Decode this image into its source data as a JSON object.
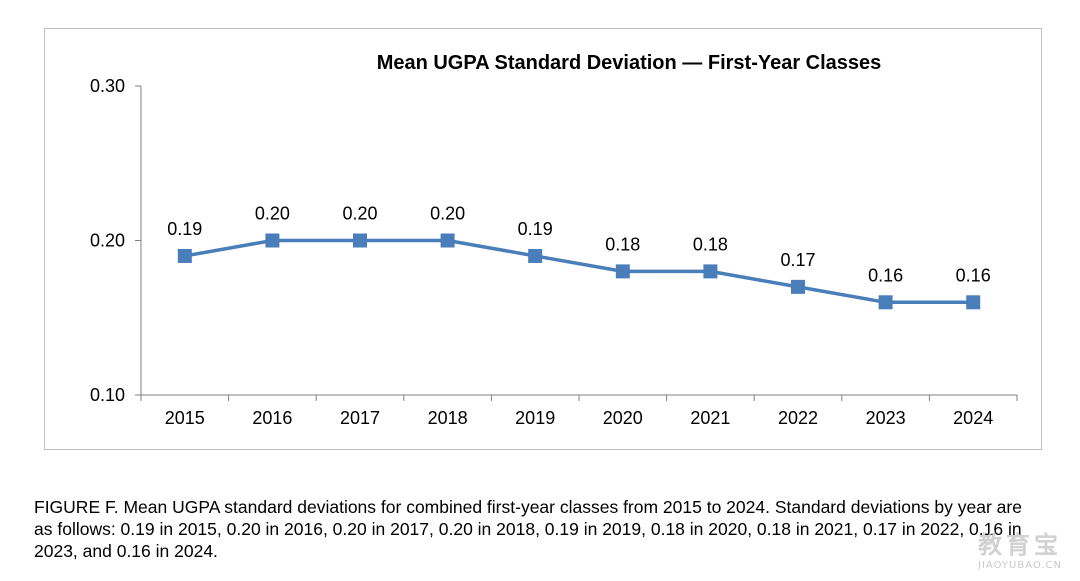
{
  "chart_data": {
    "type": "line",
    "title": "Mean UGPA Standard Deviation — First-Year Classes",
    "xlabel": "",
    "ylabel": "",
    "categories": [
      "2015",
      "2016",
      "2017",
      "2018",
      "2019",
      "2020",
      "2021",
      "2022",
      "2023",
      "2024"
    ],
    "series": [
      {
        "values": [
          0.19,
          0.2,
          0.2,
          0.2,
          0.19,
          0.18,
          0.18,
          0.17,
          0.16,
          0.16
        ]
      }
    ],
    "data_labels": [
      "0.19",
      "0.20",
      "0.20",
      "0.20",
      "0.19",
      "0.18",
      "0.18",
      "0.17",
      "0.16",
      "0.16"
    ],
    "ylim": [
      0.1,
      0.3
    ],
    "yticks": [
      0.1,
      0.2,
      0.3
    ],
    "ytick_labels": [
      "0.10",
      "0.20",
      "0.30"
    ],
    "grid": false,
    "legend": "none",
    "line_color": "#4a7ebb",
    "marker_color": "#4a7ebb"
  },
  "caption": "FIGURE F. Mean UGPA standard deviations for combined first-year classes from 2015 to 2024. Standard deviations by year are as follows: 0.19 in 2015, 0.20 in 2016, 0.20 in 2017, 0.20 in 2018, 0.19 in 2019, 0.18 in 2020, 0.18 in 2021, 0.17 in 2022, 0.16 in 2023, and 0.16 in 2024.",
  "watermark": {
    "main": "教育宝",
    "sub": "JIAOYUBAO.CN"
  }
}
